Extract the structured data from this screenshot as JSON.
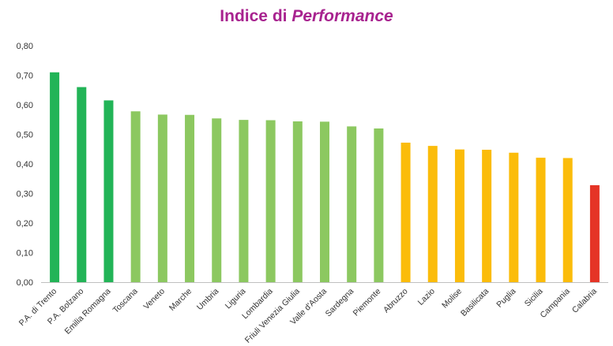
{
  "chart_data": {
    "type": "bar",
    "title_prefix": "Indice di ",
    "title_emphasis": "Performance",
    "categories": [
      "P.A. di Trento",
      "P.A. Bolzano",
      "Emilia Romagna",
      "Toscana",
      "Veneto",
      "Marche",
      "Umbria",
      "Liguria",
      "Lombardia",
      "Friuli Venezia Giulia",
      "Valle d'Aosta",
      "Sardegna",
      "Piemonte",
      "Abruzzo",
      "Lazio",
      "Molise",
      "Basilicata",
      "Puglia",
      "Sicilia",
      "Campania",
      "Calabria"
    ],
    "values": [
      0.71,
      0.66,
      0.615,
      0.578,
      0.567,
      0.566,
      0.554,
      0.549,
      0.548,
      0.544,
      0.543,
      0.527,
      0.52,
      0.472,
      0.461,
      0.449,
      0.448,
      0.438,
      0.421,
      0.42,
      0.328
    ],
    "bar_colors": [
      "#22b457",
      "#22b457",
      "#22b457",
      "#8cc860",
      "#8cc860",
      "#8cc860",
      "#8cc860",
      "#8cc860",
      "#8cc860",
      "#8cc860",
      "#8cc860",
      "#8cc860",
      "#8cc860",
      "#fbbc0a",
      "#fbbc0a",
      "#fbbc0a",
      "#fbbc0a",
      "#fbbc0a",
      "#fbbc0a",
      "#fbbc0a",
      "#e53426"
    ],
    "ylim": [
      0,
      0.8
    ],
    "yticks": [
      "0,00",
      "0,10",
      "0,20",
      "0,30",
      "0,40",
      "0,50",
      "0,60",
      "0,70",
      "0,80"
    ],
    "xlabel": "",
    "ylabel": "",
    "grid": false,
    "legend": false
  }
}
